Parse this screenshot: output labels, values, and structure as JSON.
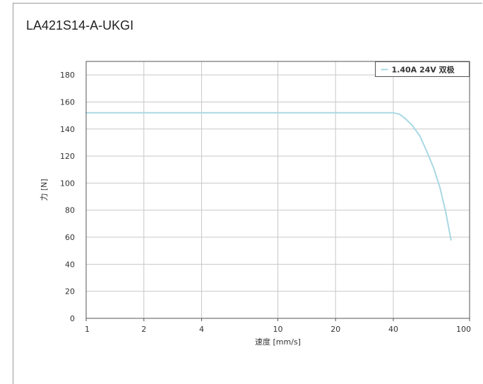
{
  "title": "LA421S14-A-UKGI",
  "chart_data": {
    "type": "line",
    "xscale": "log",
    "xlabel": "速度 [mm/s]",
    "ylabel": "力 [N]",
    "xlim": [
      1,
      100
    ],
    "ylim": [
      0,
      190
    ],
    "x_ticks": [
      1,
      2,
      4,
      10,
      20,
      40,
      100
    ],
    "y_ticks": [
      0,
      20,
      40,
      60,
      80,
      100,
      120,
      140,
      160,
      180
    ],
    "grid": true,
    "legend": {
      "position": "top-right",
      "entries": [
        "1.40A 24V 双极"
      ]
    },
    "series": [
      {
        "name": "1.40A 24V 双极",
        "color": "#a8d8e3",
        "x": [
          1,
          5,
          20,
          40,
          43,
          46,
          50,
          55,
          60,
          65,
          70,
          75,
          80
        ],
        "y": [
          152,
          152,
          152,
          152,
          151,
          148,
          143,
          135,
          123,
          111,
          97,
          79,
          58
        ]
      }
    ]
  }
}
